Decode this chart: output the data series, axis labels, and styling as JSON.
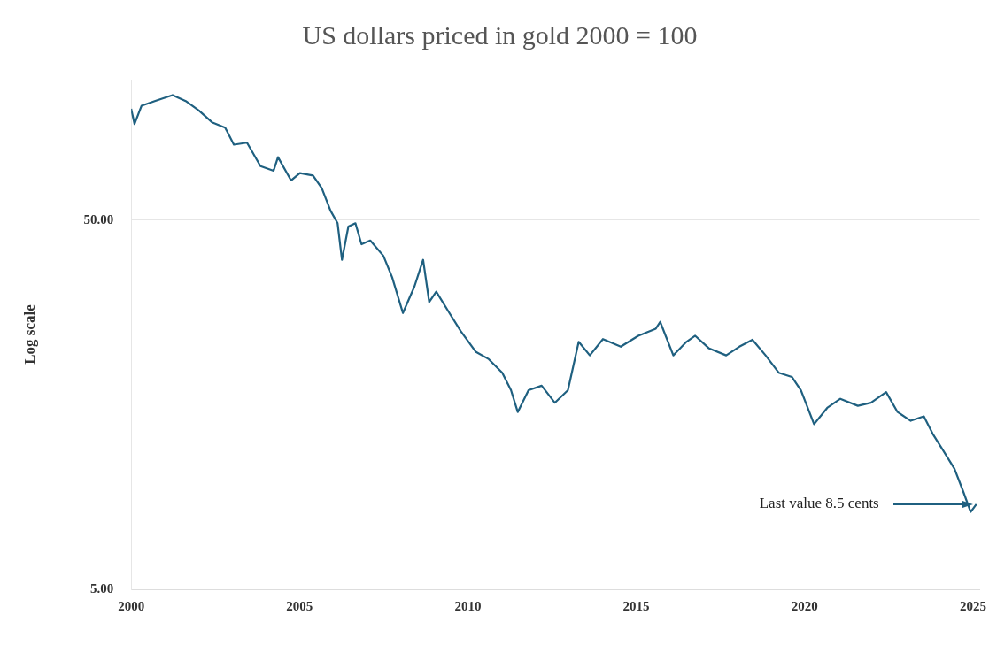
{
  "chart_data": {
    "type": "line",
    "title": "US dollars priced in gold 2000 = 100",
    "ylabel": "Log scale",
    "log": "y",
    "grid": "y",
    "legend": false,
    "marker": "none",
    "line_style": "solid",
    "xlim": [
      2000,
      2025.2
    ],
    "xticks": [
      2000,
      2005,
      2010,
      2015,
      2020,
      2025
    ],
    "ylim": [
      5,
      120
    ],
    "yticks": [
      {
        "value": 5,
        "label": "5.00"
      },
      {
        "value": 50,
        "label": "50.00"
      }
    ],
    "annotations": [
      "Last value 8.5 cents"
    ],
    "series": [
      {
        "color": "#1f6080",
        "x": [
          2000,
          2000.1,
          2000.31,
          2000.7,
          2001.23,
          2001.62,
          2002.01,
          2002.4,
          2002.79,
          2003.05,
          2003.44,
          2003.84,
          2004.23,
          2004.36,
          2004.75,
          2005.01,
          2005.4,
          2005.66,
          2005.92,
          2006.13,
          2006.26,
          2006.45,
          2006.66,
          2006.84,
          2007.1,
          2007.49,
          2007.75,
          2008.07,
          2008.41,
          2008.67,
          2008.85,
          2009.06,
          2009.45,
          2009.79,
          2010.23,
          2010.62,
          2011.02,
          2011.28,
          2011.48,
          2011.8,
          2012.19,
          2012.58,
          2012.97,
          2013.29,
          2013.62,
          2014.01,
          2014.54,
          2015.06,
          2015.58,
          2015.71,
          2016.1,
          2016.49,
          2016.75,
          2017.15,
          2017.67,
          2018.06,
          2018.45,
          2018.84,
          2019.23,
          2019.62,
          2019.89,
          2020.28,
          2020.67,
          2021.06,
          2021.58,
          2021.97,
          2022.42,
          2022.76,
          2023.15,
          2023.54,
          2023.8,
          2024.06,
          2024.45,
          2024.71,
          2024.93,
          2025.1
        ],
        "values": [
          100,
          91,
          102,
          105,
          109,
          105,
          99,
          92,
          89,
          80,
          81,
          70,
          68,
          74,
          64,
          67,
          66,
          61,
          53,
          49,
          39,
          48,
          49,
          43,
          44,
          40,
          35,
          28,
          33,
          39,
          30,
          32,
          28,
          25,
          22,
          21,
          19.3,
          17.3,
          15.1,
          17.3,
          17.8,
          16,
          17.3,
          23.4,
          21.5,
          23.8,
          22.7,
          24.3,
          25.4,
          26.5,
          21.5,
          23.4,
          24.3,
          22.5,
          21.5,
          22.7,
          23.7,
          21.5,
          19.3,
          18.8,
          17.3,
          14,
          15.5,
          16.4,
          15.7,
          16,
          17.1,
          15.1,
          14.3,
          14.7,
          13.2,
          12.1,
          10.6,
          9.2,
          8.1,
          8.5
        ]
      }
    ]
  }
}
